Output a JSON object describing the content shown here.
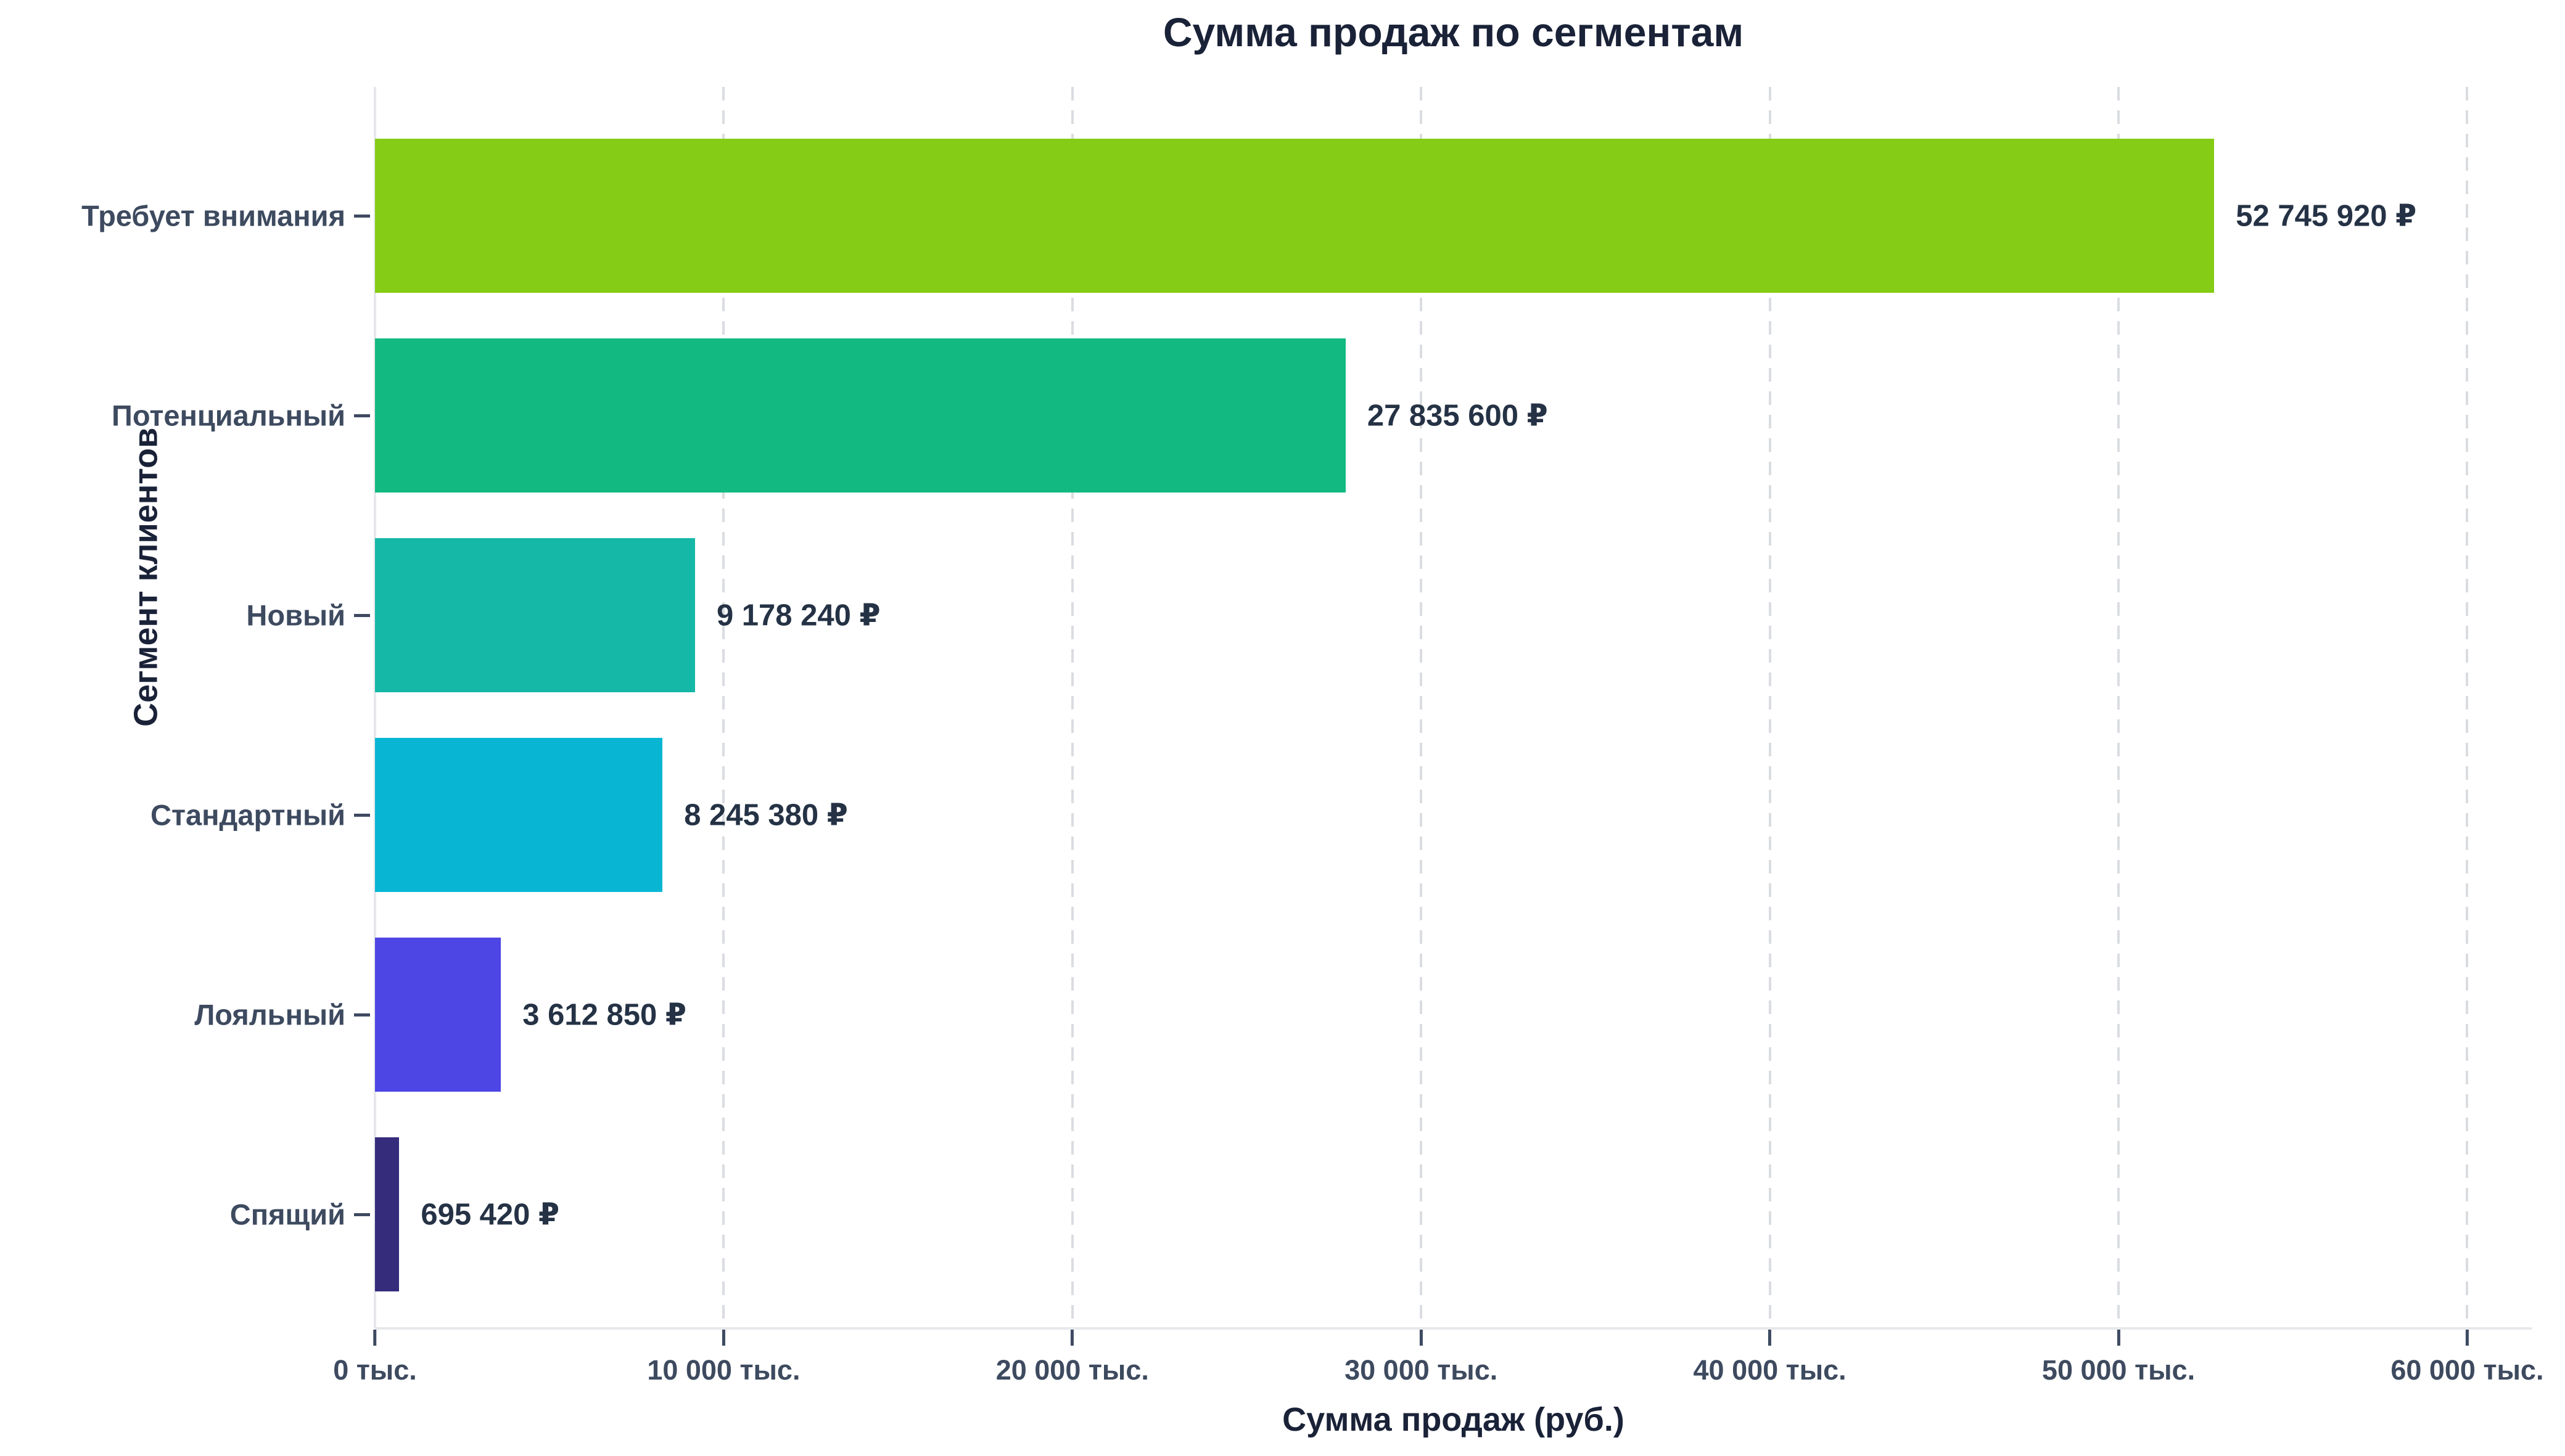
{
  "chart_data": {
    "type": "bar",
    "orientation": "horizontal",
    "title": "Сумма продаж по сегментам",
    "xlabel": "Сумма продаж (руб.)",
    "ylabel": "Сегмент клиентов",
    "categories": [
      "Требует внимания",
      "Потенциальный",
      "Новый",
      "Стандартный",
      "Лояльный",
      "Спящий"
    ],
    "values": [
      52745920,
      27835600,
      9178240,
      8245380,
      3612850,
      695420
    ],
    "value_labels": [
      "52 745 920 ₽",
      "27 835 600 ₽",
      "9 178 240 ₽",
      "8 245 380 ₽",
      "3 612 850 ₽",
      "695 420 ₽"
    ],
    "bar_colors": [
      "#85cc16",
      "#12b981",
      "#15b8a6",
      "#08b6d4",
      "#4e46e4",
      "#352c7c"
    ],
    "x_ticks": [
      {
        "value": 0,
        "label": "0 тыс."
      },
      {
        "value": 10000000,
        "label": "10 000 тыс."
      },
      {
        "value": 20000000,
        "label": "20 000 тыс."
      },
      {
        "value": 30000000,
        "label": "30 000 тыс."
      },
      {
        "value": 40000000,
        "label": "40 000 тыс."
      },
      {
        "value": 50000000,
        "label": "50 000 тыс."
      },
      {
        "value": 60000000,
        "label": "60 000 тыс."
      }
    ],
    "xlim": [
      0,
      61850000
    ],
    "grid": "vertical-dashed",
    "legend": null,
    "background": "#ffffff"
  }
}
